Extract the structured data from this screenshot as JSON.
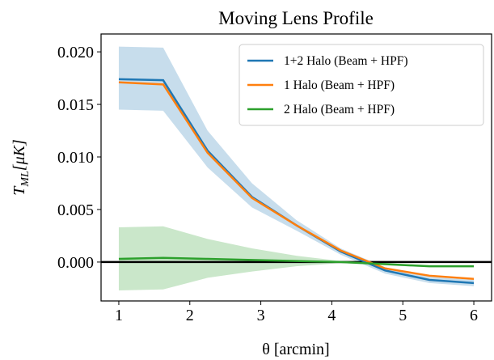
{
  "chart_data": {
    "type": "line",
    "title": "Moving Lens Profile",
    "xlabel": "θ [arcmin]",
    "ylabel": {
      "base": "T",
      "sub": "ML",
      "rest": "[μK]"
    },
    "x": [
      1,
      1.625,
      2.25,
      2.875,
      3.5,
      4.125,
      4.75,
      5.375,
      6
    ],
    "series": [
      {
        "name": "1+2 Halo (Beam + HPF)",
        "color": "#1f77b4",
        "band_color": "#1f77b4",
        "values": [
          0.0174,
          0.0173,
          0.0106,
          0.0062,
          0.0035,
          0.001,
          -0.0008,
          -0.0017,
          -0.002
        ],
        "upper": [
          0.0205,
          0.0204,
          0.0125,
          0.0075,
          0.004,
          0.0013,
          -0.0005,
          -0.0014,
          -0.0017
        ],
        "lower": [
          0.0145,
          0.0144,
          0.009,
          0.0052,
          0.003,
          0.0007,
          -0.0011,
          -0.002,
          -0.0023
        ]
      },
      {
        "name": "1 Halo (Beam + HPF)",
        "color": "#ff7f0e",
        "values": [
          0.0171,
          0.0169,
          0.0104,
          0.0061,
          0.0035,
          0.0011,
          -0.0006,
          -0.0013,
          -0.0016
        ]
      },
      {
        "name": "2 Halo (Beam + HPF)",
        "color": "#2ca02c",
        "band_color": "#2ca02c",
        "values": [
          0.0003,
          0.0004,
          0.0003,
          0.0002,
          0.0001,
          0.0,
          -0.0002,
          -0.0004,
          -0.0004
        ],
        "upper": [
          0.0033,
          0.0034,
          0.0022,
          0.0013,
          0.0006,
          0.0001,
          -0.0001,
          -0.0003,
          -0.0003
        ],
        "lower": [
          -0.0027,
          -0.0026,
          -0.0015,
          -0.0009,
          -0.0004,
          -0.0001,
          -0.0003,
          -0.0005,
          -0.0005
        ]
      }
    ],
    "axhline": 0,
    "xlim": [
      0.75,
      6.25
    ],
    "ylim": [
      -0.0037,
      0.0217
    ],
    "xticks": [
      1,
      2,
      3,
      4,
      5,
      6
    ],
    "yticks": [
      {
        "value": 0,
        "label": "0.000"
      },
      0.005,
      {
        "value": 0.01,
        "label": "0.010"
      },
      0.015,
      {
        "value": 0.02,
        "label": "0.020"
      }
    ],
    "legend": "upper right"
  }
}
